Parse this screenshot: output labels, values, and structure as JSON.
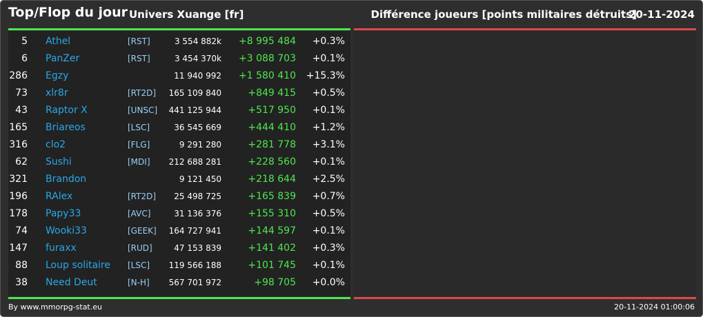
{
  "header": {
    "title": "Top/Flop du jour",
    "universe": "Univers Xuange [fr]",
    "category": "Différence joueurs [points militaires détruits]",
    "date": "20-11-2024"
  },
  "colors": {
    "background": "#2e2e2e",
    "top_accent": "#4ee84e",
    "flop_accent": "#e04848",
    "player_link": "#29a8e8",
    "alliance_tag": "#9ad0f4",
    "positive_diff": "#4ee84e"
  },
  "top_rows": [
    {
      "rank": "5",
      "name": "Athel",
      "alliance": "[RST]",
      "points": "3 554 882k",
      "diff": "+8 995 484",
      "pct": "+0.3%"
    },
    {
      "rank": "6",
      "name": "PanZer",
      "alliance": "[RST]",
      "points": "3 454 370k",
      "diff": "+3 088 703",
      "pct": "+0.1%"
    },
    {
      "rank": "286",
      "name": "Egzy",
      "alliance": "",
      "points": "11 940 992",
      "diff": "+1 580 410",
      "pct": "+15.3%"
    },
    {
      "rank": "73",
      "name": "xlr8r",
      "alliance": "[RT2D]",
      "points": "165 109 840",
      "diff": "+849 415",
      "pct": "+0.5%"
    },
    {
      "rank": "43",
      "name": "Raptor X",
      "alliance": "[UNSC]",
      "points": "441 125 944",
      "diff": "+517 950",
      "pct": "+0.1%"
    },
    {
      "rank": "165",
      "name": "Briareos",
      "alliance": "[LSC]",
      "points": "36 545 669",
      "diff": "+444 410",
      "pct": "+1.2%"
    },
    {
      "rank": "316",
      "name": "clo2",
      "alliance": "[FLG]",
      "points": "9 291 280",
      "diff": "+281 778",
      "pct": "+3.1%"
    },
    {
      "rank": "62",
      "name": "Sushi",
      "alliance": "[MDI]",
      "points": "212 688 281",
      "diff": "+228 560",
      "pct": "+0.1%"
    },
    {
      "rank": "321",
      "name": "Brandon",
      "alliance": "",
      "points": "9 121 450",
      "diff": "+218 644",
      "pct": "+2.5%"
    },
    {
      "rank": "196",
      "name": "RAlex",
      "alliance": "[RT2D]",
      "points": "25 498 725",
      "diff": "+165 839",
      "pct": "+0.7%"
    },
    {
      "rank": "178",
      "name": "Papy33",
      "alliance": "[AVC]",
      "points": "31 136 376",
      "diff": "+155 310",
      "pct": "+0.5%"
    },
    {
      "rank": "74",
      "name": "Wooki33",
      "alliance": "[GEEK]",
      "points": "164 727 941",
      "diff": "+144 597",
      "pct": "+0.1%"
    },
    {
      "rank": "147",
      "name": "furaxx",
      "alliance": "[RUD]",
      "points": "47 153 839",
      "diff": "+141 402",
      "pct": "+0.3%"
    },
    {
      "rank": "88",
      "name": "Loup solitaire",
      "alliance": "[LSC]",
      "points": "119 566 188",
      "diff": "+101 745",
      "pct": "+0.1%"
    },
    {
      "rank": "38",
      "name": "Need Deut",
      "alliance": "[N-H]",
      "points": "567 701 972",
      "diff": "+98 705",
      "pct": "+0.0%"
    }
  ],
  "footer": {
    "credit": "By www.mmorpg-stat.eu",
    "timestamp": "20-11-2024 01:00:06"
  }
}
